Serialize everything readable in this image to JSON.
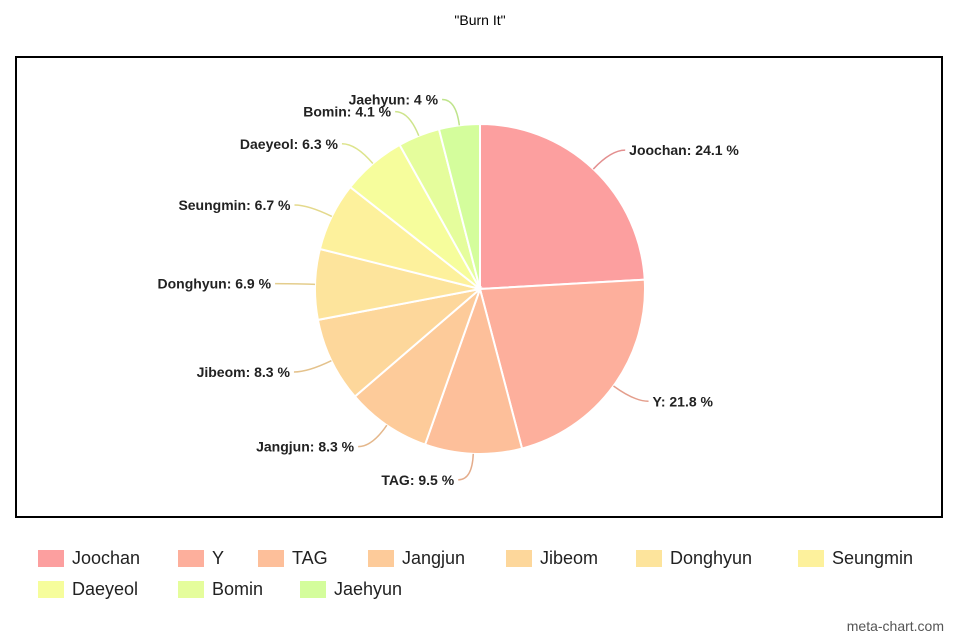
{
  "chart_data": {
    "type": "pie",
    "title": "\"Burn It\"",
    "categories": [
      "Joochan",
      "Y",
      "TAG",
      "Jangjun",
      "Jibeom",
      "Donghyun",
      "Seungmin",
      "Daeyeol",
      "Bomin",
      "Jaehyun"
    ],
    "values": [
      24.1,
      21.8,
      9.5,
      8.3,
      8.3,
      6.9,
      6.7,
      6.3,
      4.1,
      4.0
    ],
    "labels": [
      "Joochan: 24.1 %",
      "Y: 21.8 %",
      "TAG: 9.5 %",
      "Jangjun: 8.3 %",
      "Jibeom: 8.3 %",
      "Donghyun: 6.9 %",
      "Seungmin: 6.7 %",
      "Daeyeol: 6.3 %",
      "Bomin: 4.1 %",
      "Jaehyun: 4 %"
    ],
    "colors": [
      "#fc9f9f",
      "#fdaf9c",
      "#fdbf9a",
      "#fdcb9a",
      "#fdd79b",
      "#fde49c",
      "#fdf19c",
      "#f6fd9c",
      "#e5fd9c",
      "#d4fd9c"
    ],
    "legend_position": "bottom"
  },
  "watermark": "meta-chart.com"
}
